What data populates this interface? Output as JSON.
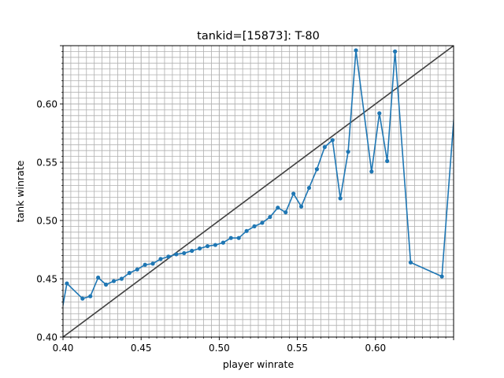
{
  "chart_data": {
    "type": "line",
    "title": "tankid=[15873]: T-80",
    "xlabel": "player winrate",
    "ylabel": "tank winrate",
    "xlim": [
      0.4,
      0.65
    ],
    "ylim": [
      0.4,
      0.65
    ],
    "x_ticks": [
      "0.40",
      "0.45",
      "0.50",
      "0.55",
      "0.60"
    ],
    "y_ticks": [
      "0.40",
      "0.45",
      "0.50",
      "0.55",
      "0.60"
    ],
    "grid": {
      "major": true,
      "minor": true
    },
    "colors": {
      "series": "#1f77b4",
      "reference": "#404040",
      "grid": "#b0b0b0"
    },
    "series": [
      {
        "x": [
          0.3975,
          0.4025,
          0.4125,
          0.4175,
          0.4225,
          0.4275,
          0.4325,
          0.4375,
          0.4425,
          0.4475,
          0.4525,
          0.4575,
          0.4625,
          0.4675,
          0.4725,
          0.4775,
          0.4825,
          0.4875,
          0.4925,
          0.4975,
          0.5025,
          0.5075,
          0.5125,
          0.5175,
          0.5225,
          0.5275,
          0.5325,
          0.5375,
          0.5425,
          0.5475,
          0.5525,
          0.5575,
          0.5625,
          0.5675,
          0.5725,
          0.5775,
          0.5825,
          0.5875,
          0.5975,
          0.6025,
          0.6075,
          0.6125,
          0.6225,
          0.6425,
          0.6525
        ],
        "y": [
          0.409,
          0.446,
          0.433,
          0.435,
          0.451,
          0.445,
          0.448,
          0.45,
          0.455,
          0.458,
          0.462,
          0.463,
          0.467,
          0.469,
          0.471,
          0.472,
          0.474,
          0.476,
          0.478,
          0.479,
          0.481,
          0.485,
          0.485,
          0.491,
          0.495,
          0.498,
          0.503,
          0.511,
          0.507,
          0.523,
          0.512,
          0.528,
          0.544,
          0.563,
          0.569,
          0.519,
          0.559,
          0.646,
          0.542,
          0.592,
          0.551,
          0.645,
          0.464,
          0.452,
          0.629
        ]
      }
    ],
    "reference_line": {
      "x": [
        0.4,
        0.65
      ],
      "y": [
        0.4,
        0.65
      ]
    }
  }
}
